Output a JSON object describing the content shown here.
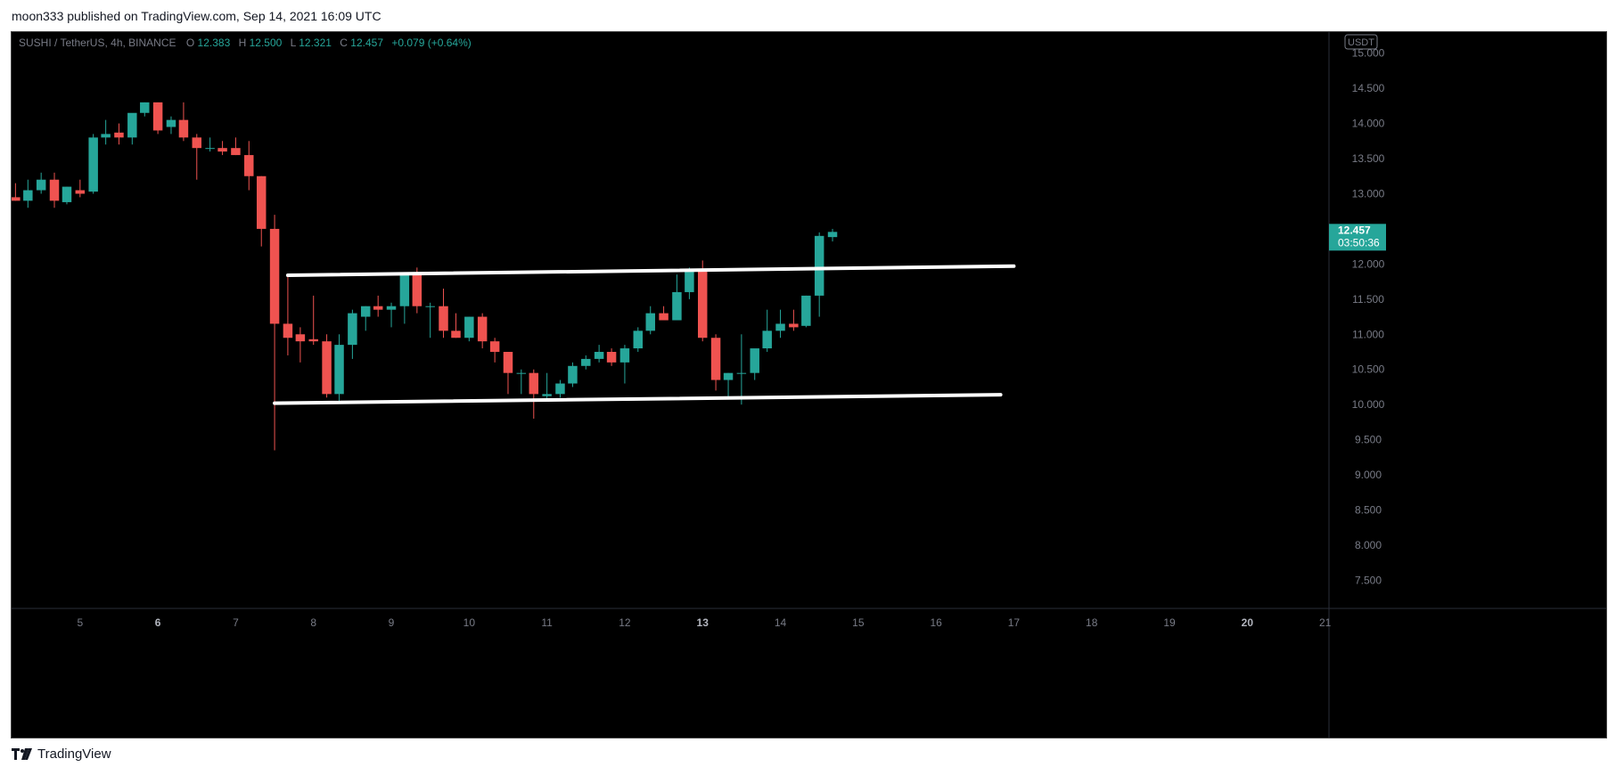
{
  "header": {
    "published_text": "moon333 published on TradingView.com, Sep 14, 2021 16:09 UTC"
  },
  "footer": {
    "brand": "TradingView"
  },
  "colors": {
    "bull": "#26a69a",
    "bear": "#ef5350",
    "background": "#000000",
    "axis_text": "#787b86",
    "trendline": "#ffffff"
  },
  "chart_data": {
    "type": "candlestick",
    "symbol": "SUSHI / TetherUS, 4h, BINANCE",
    "ohlc_label": {
      "o_key": "O",
      "o": "12.383",
      "h_key": "H",
      "h": "12.500",
      "l_key": "L",
      "l": "12.321",
      "c_key": "C",
      "c": "12.457",
      "change": "+0.079 (+0.64%)"
    },
    "currency_badge": "USDT",
    "last_price": "12.457",
    "countdown": "03:50:36",
    "ylim": [
      7.1,
      15.3
    ],
    "y_ticks": [
      "15.000",
      "14.500",
      "14.000",
      "13.500",
      "13.000",
      "12.500",
      "12.000",
      "11.500",
      "11.000",
      "10.500",
      "10.000",
      "9.500",
      "9.000",
      "8.500",
      "8.000",
      "7.500"
    ],
    "x_ticks": [
      {
        "label": "5",
        "day": 5,
        "bold": false
      },
      {
        "label": "6",
        "day": 6,
        "bold": true
      },
      {
        "label": "7",
        "day": 7,
        "bold": false
      },
      {
        "label": "8",
        "day": 8,
        "bold": false
      },
      {
        "label": "9",
        "day": 9,
        "bold": false
      },
      {
        "label": "10",
        "day": 10,
        "bold": false
      },
      {
        "label": "11",
        "day": 11,
        "bold": false
      },
      {
        "label": "12",
        "day": 12,
        "bold": false
      },
      {
        "label": "13",
        "day": 13,
        "bold": true
      },
      {
        "label": "14",
        "day": 14,
        "bold": false
      },
      {
        "label": "15",
        "day": 15,
        "bold": false
      },
      {
        "label": "16",
        "day": 16,
        "bold": false
      },
      {
        "label": "17",
        "day": 17,
        "bold": false
      },
      {
        "label": "18",
        "day": 18,
        "bold": false
      },
      {
        "label": "19",
        "day": 19,
        "bold": false
      },
      {
        "label": "20",
        "day": 20,
        "bold": true
      },
      {
        "label": "21",
        "day": 21,
        "bold": false
      }
    ],
    "xlim": [
      4.12,
      21.05
    ],
    "candles": [
      {
        "t": 4.17,
        "o": 12.95,
        "h": 13.15,
        "l": 12.9,
        "c": 12.9
      },
      {
        "t": 4.33,
        "o": 12.9,
        "h": 13.2,
        "l": 12.8,
        "c": 13.05
      },
      {
        "t": 4.5,
        "o": 13.05,
        "h": 13.3,
        "l": 13.0,
        "c": 13.2
      },
      {
        "t": 4.67,
        "o": 13.2,
        "h": 13.3,
        "l": 12.8,
        "c": 12.9
      },
      {
        "t": 4.83,
        "o": 12.88,
        "h": 13.1,
        "l": 12.85,
        "c": 13.1
      },
      {
        "t": 5.0,
        "o": 13.05,
        "h": 13.2,
        "l": 12.95,
        "c": 13.0
      },
      {
        "t": 5.17,
        "o": 13.03,
        "h": 13.85,
        "l": 13.0,
        "c": 13.8
      },
      {
        "t": 5.33,
        "o": 13.8,
        "h": 14.05,
        "l": 13.7,
        "c": 13.85
      },
      {
        "t": 5.5,
        "o": 13.87,
        "h": 14.0,
        "l": 13.7,
        "c": 13.8
      },
      {
        "t": 5.67,
        "o": 13.8,
        "h": 14.1,
        "l": 13.7,
        "c": 14.15
      },
      {
        "t": 5.83,
        "o": 14.15,
        "h": 14.3,
        "l": 14.1,
        "c": 14.3
      },
      {
        "t": 6.0,
        "o": 14.3,
        "h": 14.3,
        "l": 13.85,
        "c": 13.9
      },
      {
        "t": 6.17,
        "o": 13.95,
        "h": 14.1,
        "l": 13.85,
        "c": 14.05
      },
      {
        "t": 6.33,
        "o": 14.05,
        "h": 14.3,
        "l": 13.75,
        "c": 13.8
      },
      {
        "t": 6.5,
        "o": 13.8,
        "h": 13.85,
        "l": 13.2,
        "c": 13.65
      },
      {
        "t": 6.67,
        "o": 13.65,
        "h": 13.8,
        "l": 13.6,
        "c": 13.65
      },
      {
        "t": 6.83,
        "o": 13.65,
        "h": 13.75,
        "l": 13.55,
        "c": 13.6
      },
      {
        "t": 7.0,
        "o": 13.65,
        "h": 13.8,
        "l": 13.55,
        "c": 13.55
      },
      {
        "t": 7.17,
        "o": 13.55,
        "h": 13.75,
        "l": 13.05,
        "c": 13.25
      },
      {
        "t": 7.33,
        "o": 13.25,
        "h": 13.25,
        "l": 12.25,
        "c": 12.5
      },
      {
        "t": 7.5,
        "o": 12.5,
        "h": 12.7,
        "l": 9.35,
        "c": 11.15
      },
      {
        "t": 7.67,
        "o": 11.15,
        "h": 11.85,
        "l": 10.7,
        "c": 10.95
      },
      {
        "t": 7.83,
        "o": 11.0,
        "h": 11.1,
        "l": 10.6,
        "c": 10.9
      },
      {
        "t": 8.0,
        "o": 10.93,
        "h": 11.55,
        "l": 10.85,
        "c": 10.9
      },
      {
        "t": 8.17,
        "o": 10.9,
        "h": 11.0,
        "l": 10.1,
        "c": 10.15
      },
      {
        "t": 8.33,
        "o": 10.15,
        "h": 11.0,
        "l": 10.05,
        "c": 10.85
      },
      {
        "t": 8.5,
        "o": 10.85,
        "h": 11.35,
        "l": 10.65,
        "c": 11.3
      },
      {
        "t": 8.67,
        "o": 11.25,
        "h": 11.4,
        "l": 11.05,
        "c": 11.4
      },
      {
        "t": 8.83,
        "o": 11.4,
        "h": 11.55,
        "l": 11.25,
        "c": 11.35
      },
      {
        "t": 9.0,
        "o": 11.35,
        "h": 11.45,
        "l": 11.1,
        "c": 11.4
      },
      {
        "t": 9.17,
        "o": 11.4,
        "h": 11.85,
        "l": 11.15,
        "c": 11.85
      },
      {
        "t": 9.33,
        "o": 11.85,
        "h": 11.95,
        "l": 11.3,
        "c": 11.4
      },
      {
        "t": 9.5,
        "o": 11.4,
        "h": 11.45,
        "l": 10.95,
        "c": 11.4
      },
      {
        "t": 9.67,
        "o": 11.4,
        "h": 11.65,
        "l": 10.95,
        "c": 11.05
      },
      {
        "t": 9.83,
        "o": 11.05,
        "h": 11.3,
        "l": 10.95,
        "c": 10.95
      },
      {
        "t": 10.0,
        "o": 10.95,
        "h": 11.25,
        "l": 10.9,
        "c": 11.25
      },
      {
        "t": 10.17,
        "o": 11.25,
        "h": 11.3,
        "l": 10.8,
        "c": 10.9
      },
      {
        "t": 10.33,
        "o": 10.9,
        "h": 10.95,
        "l": 10.6,
        "c": 10.75
      },
      {
        "t": 10.5,
        "o": 10.75,
        "h": 10.75,
        "l": 10.15,
        "c": 10.45
      },
      {
        "t": 10.67,
        "o": 10.45,
        "h": 10.5,
        "l": 10.15,
        "c": 10.45
      },
      {
        "t": 10.83,
        "o": 10.45,
        "h": 10.5,
        "l": 9.8,
        "c": 10.15
      },
      {
        "t": 11.0,
        "o": 10.12,
        "h": 10.45,
        "l": 10.05,
        "c": 10.15
      },
      {
        "t": 11.17,
        "o": 10.15,
        "h": 10.35,
        "l": 10.1,
        "c": 10.3
      },
      {
        "t": 11.33,
        "o": 10.3,
        "h": 10.6,
        "l": 10.25,
        "c": 10.55
      },
      {
        "t": 11.5,
        "o": 10.55,
        "h": 10.7,
        "l": 10.5,
        "c": 10.65
      },
      {
        "t": 11.67,
        "o": 10.65,
        "h": 10.85,
        "l": 10.6,
        "c": 10.75
      },
      {
        "t": 11.83,
        "o": 10.75,
        "h": 10.8,
        "l": 10.55,
        "c": 10.6
      },
      {
        "t": 12.0,
        "o": 10.6,
        "h": 10.85,
        "l": 10.3,
        "c": 10.8
      },
      {
        "t": 12.17,
        "o": 10.8,
        "h": 11.1,
        "l": 10.75,
        "c": 11.05
      },
      {
        "t": 12.33,
        "o": 11.05,
        "h": 11.4,
        "l": 11.0,
        "c": 11.3
      },
      {
        "t": 12.5,
        "o": 11.3,
        "h": 11.4,
        "l": 11.2,
        "c": 11.2
      },
      {
        "t": 12.67,
        "o": 11.2,
        "h": 11.85,
        "l": 11.2,
        "c": 11.6
      },
      {
        "t": 12.83,
        "o": 11.6,
        "h": 11.95,
        "l": 11.5,
        "c": 11.9
      },
      {
        "t": 13.0,
        "o": 11.9,
        "h": 12.05,
        "l": 10.9,
        "c": 10.95
      },
      {
        "t": 13.17,
        "o": 10.95,
        "h": 11.0,
        "l": 10.2,
        "c": 10.35
      },
      {
        "t": 13.33,
        "o": 10.35,
        "h": 10.45,
        "l": 10.1,
        "c": 10.45
      },
      {
        "t": 13.5,
        "o": 10.45,
        "h": 11.0,
        "l": 10.0,
        "c": 10.45
      },
      {
        "t": 13.67,
        "o": 10.45,
        "h": 10.75,
        "l": 10.35,
        "c": 10.8
      },
      {
        "t": 13.83,
        "o": 10.8,
        "h": 11.35,
        "l": 10.75,
        "c": 11.05
      },
      {
        "t": 14.0,
        "o": 11.05,
        "h": 11.35,
        "l": 10.95,
        "c": 11.15
      },
      {
        "t": 14.17,
        "o": 11.15,
        "h": 11.35,
        "l": 11.05,
        "c": 11.1
      },
      {
        "t": 14.33,
        "o": 11.12,
        "h": 11.55,
        "l": 11.1,
        "c": 11.55
      },
      {
        "t": 14.5,
        "o": 11.55,
        "h": 12.45,
        "l": 11.25,
        "c": 12.4
      },
      {
        "t": 14.67,
        "o": 12.383,
        "h": 12.5,
        "l": 12.321,
        "c": 12.457
      }
    ],
    "trendlines": [
      {
        "name": "resistance",
        "x1": 7.67,
        "y1": 11.84,
        "x2": 17.0,
        "y2": 11.97
      },
      {
        "name": "support",
        "x1": 7.5,
        "y1": 10.02,
        "x2": 16.83,
        "y2": 10.14
      }
    ]
  }
}
